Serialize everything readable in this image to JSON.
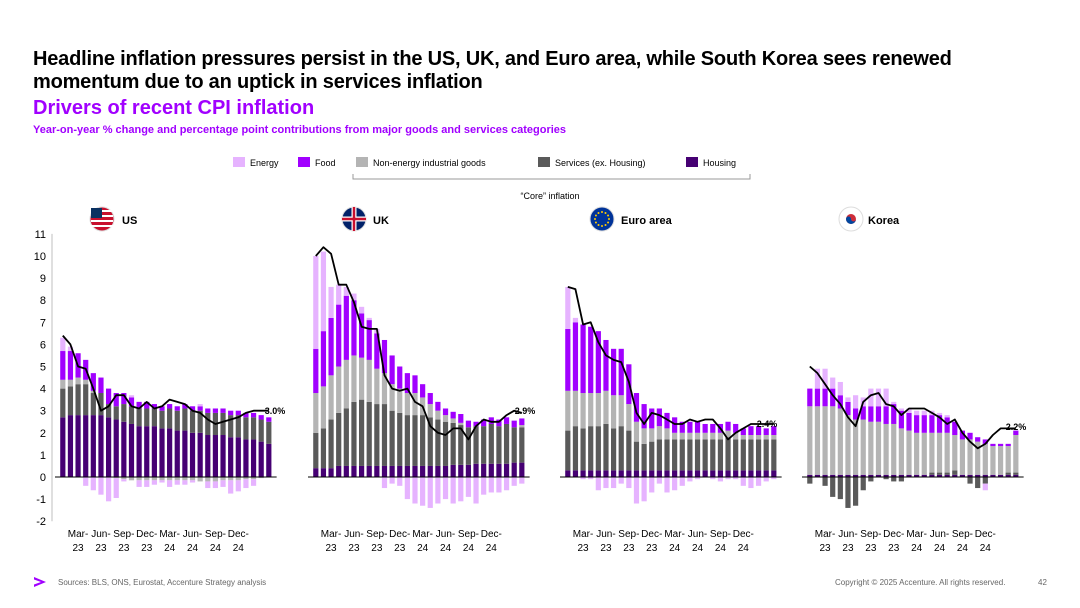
{
  "headline": "Headline inflation pressures persist in the US, UK, and Euro area, while South Korea sees renewed momentum due to an uptick in services inflation",
  "subtitle": "Drivers of recent CPI inflation",
  "subsubtitle": "Year-on-year % change and percentage point contributions from major goods and services categories",
  "core_label": "“Core” inflation",
  "footer": {
    "source": "Sources: BLS, ONS, Eurostat, Accenture Strategy analysis",
    "copyright": "Copyright © 2025 Accenture. All rights reserved.",
    "page": "42"
  },
  "colors": {
    "energy": "#e6b3ff",
    "food": "#a100ff",
    "goods": "#b4b4b4",
    "services": "#5a5a5a",
    "housing": "#460073",
    "line": "#000000",
    "accent": "#a100ff"
  },
  "chart_data": {
    "type": "bar",
    "stacked": true,
    "ylim": [
      -2,
      11
    ],
    "yticks": [
      "-2",
      "-1",
      "0",
      "1",
      "2",
      "3",
      "4",
      "5",
      "6",
      "7",
      "8",
      "9",
      "10",
      "11"
    ],
    "xtick_labels": [
      [
        "Mar-",
        "23"
      ],
      [
        "Jun-",
        "23"
      ],
      [
        "Sep-",
        "23"
      ],
      [
        "Dec-",
        "23"
      ],
      [
        "Mar-",
        "24"
      ],
      [
        "Jun-",
        "24"
      ],
      [
        "Sep-",
        "24"
      ],
      [
        "Dec-",
        "24"
      ]
    ],
    "legend": [
      {
        "key": "energy",
        "label": "Energy"
      },
      {
        "key": "food",
        "label": "Food"
      },
      {
        "key": "goods",
        "label": "Non-energy industrial goods"
      },
      {
        "key": "services",
        "label": "Services (ex. Housing)"
      },
      {
        "key": "housing",
        "label": "Housing"
      }
    ],
    "panels": [
      {
        "name": "US",
        "latest_label": "3.0%",
        "housing": [
          2.7,
          2.8,
          2.8,
          2.8,
          2.8,
          2.8,
          2.7,
          2.6,
          2.5,
          2.4,
          2.3,
          2.3,
          2.3,
          2.2,
          2.2,
          2.1,
          2.1,
          2.0,
          2.0,
          1.9,
          1.9,
          1.9,
          1.8,
          1.8,
          1.7,
          1.7,
          1.6,
          1.5
        ],
        "services": [
          1.3,
          1.3,
          1.4,
          1.4,
          1.0,
          1.0,
          0.6,
          0.6,
          0.8,
          0.8,
          0.8,
          0.8,
          0.8,
          0.8,
          0.9,
          0.9,
          1.0,
          1.0,
          1.0,
          1.0,
          1.0,
          1.0,
          1.0,
          1.0,
          1.0,
          1.0,
          1.0,
          1.0
        ],
        "goods": [
          0.4,
          0.3,
          0.3,
          0.2,
          0.1,
          0.0,
          0.0,
          -0.05,
          -0.1,
          -0.15,
          -0.15,
          -0.15,
          -0.15,
          -0.15,
          -0.15,
          -0.15,
          -0.15,
          -0.15,
          -0.2,
          -0.2,
          -0.2,
          -0.15,
          -0.15,
          -0.15,
          -0.1,
          -0.1,
          -0.05,
          0.0
        ],
        "food": [
          1.3,
          1.3,
          1.1,
          0.9,
          0.8,
          0.7,
          0.7,
          0.6,
          0.5,
          0.4,
          0.3,
          0.3,
          0.2,
          0.2,
          0.2,
          0.2,
          0.2,
          0.2,
          0.2,
          0.2,
          0.2,
          0.2,
          0.2,
          0.2,
          0.2,
          0.2,
          0.2,
          0.2
        ],
        "energy": [
          0.6,
          0.2,
          0.0,
          -0.4,
          -0.6,
          -0.8,
          -1.1,
          -0.9,
          -0.1,
          0.1,
          -0.3,
          -0.3,
          -0.2,
          -0.1,
          -0.3,
          -0.2,
          -0.2,
          -0.1,
          0.1,
          -0.3,
          -0.3,
          -0.3,
          -0.6,
          -0.5,
          -0.4,
          -0.3,
          0.0,
          0.0
        ],
        "headline": [
          6.4,
          6.0,
          5.0,
          4.9,
          4.0,
          3.0,
          3.2,
          3.7,
          3.7,
          3.2,
          3.1,
          3.4,
          3.1,
          3.2,
          3.5,
          3.4,
          3.3,
          3.0,
          2.9,
          2.6,
          2.4,
          2.5,
          2.6,
          2.7,
          2.9,
          3.0,
          3.0,
          3.0
        ]
      },
      {
        "name": "UK",
        "latest_label": "2.9%",
        "housing": [
          0.4,
          0.4,
          0.4,
          0.5,
          0.5,
          0.5,
          0.5,
          0.5,
          0.5,
          0.5,
          0.5,
          0.5,
          0.5,
          0.5,
          0.5,
          0.5,
          0.5,
          0.5,
          0.55,
          0.55,
          0.55,
          0.6,
          0.6,
          0.6,
          0.6,
          0.6,
          0.65,
          0.65
        ],
        "services": [
          1.6,
          1.8,
          2.2,
          2.4,
          2.6,
          2.9,
          3.0,
          2.9,
          2.8,
          2.8,
          2.5,
          2.4,
          2.3,
          2.3,
          2.3,
          2.2,
          2.1,
          2.0,
          1.9,
          1.8,
          1.7,
          1.7,
          1.7,
          1.8,
          1.7,
          1.8,
          1.6,
          1.6
        ],
        "goods": [
          1.8,
          1.9,
          2.0,
          2.1,
          2.2,
          2.1,
          1.9,
          1.9,
          1.6,
          1.4,
          1.2,
          1.1,
          1.0,
          1.0,
          0.8,
          0.6,
          0.4,
          0.3,
          0.2,
          0.1,
          0.0,
          0.0,
          0.0,
          0.0,
          0.0,
          0.0,
          0.0,
          0.1
        ],
        "food": [
          2.0,
          2.5,
          2.6,
          2.8,
          2.9,
          2.5,
          2.0,
          1.8,
          1.6,
          1.5,
          1.3,
          1.0,
          0.9,
          0.8,
          0.6,
          0.5,
          0.4,
          0.3,
          0.3,
          0.4,
          0.3,
          0.2,
          0.3,
          0.3,
          0.3,
          0.3,
          0.3,
          0.3
        ],
        "energy": [
          4.2,
          3.6,
          1.4,
          0.9,
          0.4,
          0.3,
          0.3,
          0.1,
          0.2,
          -0.5,
          -0.3,
          -0.4,
          -1.0,
          -1.2,
          -1.3,
          -1.4,
          -1.2,
          -1.0,
          -1.2,
          -1.1,
          -0.9,
          -1.2,
          -0.8,
          -0.7,
          -0.7,
          -0.6,
          -0.4,
          -0.3
        ],
        "headline": [
          10.0,
          10.4,
          10.1,
          8.7,
          8.7,
          7.9,
          6.8,
          6.7,
          6.7,
          4.6,
          4.0,
          3.9,
          4.0,
          3.4,
          3.2,
          2.3,
          2.0,
          1.9,
          2.2,
          2.2,
          1.7,
          2.3,
          2.6,
          2.5,
          2.5,
          2.8,
          3.0,
          2.9
        ]
      },
      {
        "name": "Euro area",
        "latest_label": "2.4%",
        "housing": [
          0.3,
          0.3,
          0.3,
          0.3,
          0.3,
          0.3,
          0.3,
          0.3,
          0.3,
          0.3,
          0.3,
          0.3,
          0.3,
          0.3,
          0.3,
          0.3,
          0.3,
          0.3,
          0.3,
          0.3,
          0.3,
          0.3,
          0.3,
          0.3,
          0.3,
          0.3,
          0.3,
          0.3
        ],
        "services": [
          1.8,
          2.0,
          1.9,
          2.0,
          2.0,
          2.1,
          1.9,
          2.0,
          1.8,
          1.3,
          1.2,
          1.3,
          1.4,
          1.4,
          1.4,
          1.4,
          1.4,
          1.4,
          1.4,
          1.4,
          1.4,
          1.5,
          1.4,
          1.4,
          1.4,
          1.4,
          1.4,
          1.4
        ],
        "goods": [
          1.8,
          1.6,
          1.6,
          1.5,
          1.5,
          1.5,
          1.5,
          1.4,
          1.2,
          0.9,
          0.7,
          0.6,
          0.6,
          0.5,
          0.3,
          0.3,
          0.3,
          0.3,
          0.3,
          0.3,
          0.3,
          0.3,
          0.3,
          0.2,
          0.2,
          0.2,
          0.2,
          0.2
        ],
        "food": [
          2.8,
          3.1,
          3.1,
          3.0,
          2.8,
          2.3,
          2.1,
          2.1,
          1.8,
          1.3,
          1.1,
          0.9,
          0.8,
          0.7,
          0.7,
          0.5,
          0.5,
          0.5,
          0.4,
          0.4,
          0.4,
          0.4,
          0.4,
          0.3,
          0.4,
          0.4,
          0.3,
          0.4
        ],
        "energy": [
          1.9,
          0.2,
          -0.1,
          -0.1,
          -0.6,
          -0.5,
          -0.5,
          -0.3,
          -0.5,
          -1.2,
          -1.1,
          -0.7,
          -0.3,
          -0.7,
          -0.6,
          -0.4,
          -0.2,
          -0.1,
          0.0,
          -0.1,
          -0.2,
          -0.1,
          -0.1,
          -0.4,
          -0.5,
          -0.4,
          -0.2,
          -0.1
        ],
        "headline": [
          8.6,
          8.5,
          6.9,
          7.0,
          6.1,
          5.5,
          5.3,
          5.2,
          4.3,
          2.9,
          2.4,
          2.9,
          2.8,
          2.6,
          2.4,
          2.4,
          2.6,
          2.5,
          2.6,
          2.6,
          2.2,
          1.7,
          2.0,
          2.2,
          2.4,
          2.4,
          2.4,
          2.4
        ]
      },
      {
        "name": "Korea",
        "latest_label": "2.2%",
        "housing": [
          0.1,
          0.1,
          0.1,
          0.1,
          0.1,
          0.1,
          0.1,
          0.1,
          0.1,
          0.1,
          0.1,
          0.1,
          0.1,
          0.1,
          0.1,
          0.1,
          0.1,
          0.1,
          0.1,
          0.1,
          0.1,
          0.1,
          0.1,
          0.1,
          0.1,
          0.1,
          0.1,
          0.1
        ],
        "services": [
          -0.3,
          0.0,
          -0.4,
          -0.9,
          -1.0,
          -1.4,
          -1.3,
          -0.6,
          -0.2,
          0.0,
          -0.1,
          -0.2,
          -0.2,
          0.0,
          0.0,
          0.0,
          0.1,
          0.1,
          0.1,
          0.2,
          0.0,
          -0.3,
          -0.5,
          -0.3,
          0.0,
          0.0,
          0.1,
          0.1
        ],
        "goods": [
          3.1,
          3.1,
          3.1,
          3.1,
          3.0,
          2.7,
          2.5,
          2.5,
          2.4,
          2.4,
          2.3,
          2.3,
          2.1,
          2.0,
          1.9,
          1.9,
          1.8,
          1.8,
          1.8,
          1.6,
          1.6,
          1.6,
          1.5,
          1.4,
          1.3,
          1.3,
          1.2,
          1.7
        ],
        "food": [
          0.8,
          0.8,
          0.8,
          0.8,
          0.6,
          0.6,
          0.5,
          0.6,
          0.7,
          0.7,
          0.8,
          0.9,
          0.8,
          0.8,
          0.8,
          0.8,
          0.8,
          0.8,
          0.7,
          0.6,
          0.4,
          0.3,
          0.2,
          0.2,
          0.1,
          0.1,
          0.1,
          0.2
        ],
        "energy": [
          0.0,
          0.9,
          0.9,
          0.5,
          0.6,
          0.2,
          0.6,
          0.4,
          0.8,
          0.8,
          0.8,
          0.1,
          0.1,
          0.2,
          0.2,
          0.2,
          0.2,
          0.1,
          0.1,
          0.0,
          0.0,
          0.0,
          0.0,
          -0.3,
          0.0,
          0.0,
          0.0,
          0.0
        ],
        "headline": [
          5.0,
          4.7,
          4.2,
          3.7,
          3.3,
          2.7,
          2.3,
          3.4,
          3.7,
          3.8,
          3.3,
          3.2,
          2.8,
          3.1,
          3.1,
          3.1,
          2.9,
          2.7,
          2.4,
          2.6,
          2.0,
          1.6,
          1.3,
          1.5,
          1.9,
          2.2,
          2.2,
          2.2
        ]
      }
    ]
  }
}
